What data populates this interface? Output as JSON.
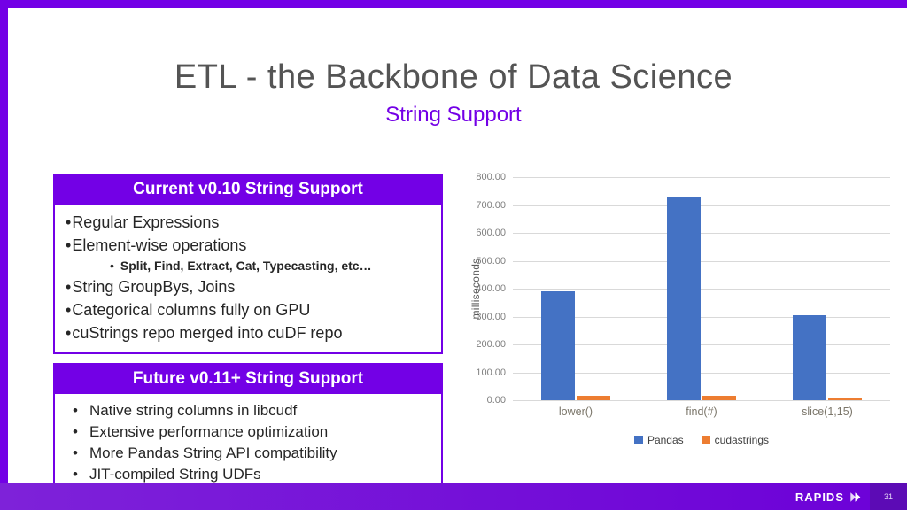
{
  "slide": {
    "title": "ETL - the Backbone of Data Science",
    "subtitle": "String Support",
    "brand": "RAPIDS",
    "page_number": "31"
  },
  "current_box": {
    "header": "Current v0.10 String Support",
    "items": [
      {
        "text": "Regular Expressions",
        "level": 1
      },
      {
        "text": "Element-wise operations",
        "level": 1
      },
      {
        "text": "Split, Find, Extract, Cat, Typecasting, etc…",
        "level": 2
      },
      {
        "text": "String GroupBys, Joins",
        "level": 1
      },
      {
        "text": "Categorical columns fully on GPU",
        "level": 1
      },
      {
        "text": "cuStrings repo merged into cuDF repo",
        "level": 1
      }
    ]
  },
  "future_box": {
    "header": "Future v0.11+ String Support",
    "items": [
      "Native string columns in libcudf",
      "Extensive performance optimization",
      "More Pandas String API compatibility",
      "JIT-compiled String UDFs"
    ]
  },
  "chart_data": {
    "type": "bar",
    "categories": [
      "lower()",
      "find(#)",
      "slice(1,15)"
    ],
    "series": [
      {
        "name": "Pandas",
        "color": "#4472c4",
        "values": [
          390,
          730,
          305
        ]
      },
      {
        "name": "cudastrings",
        "color": "#ed7d31",
        "values": [
          15,
          15,
          5
        ]
      }
    ],
    "title": "",
    "xlabel": "",
    "ylabel": "milliseconds",
    "ylim": [
      0,
      800
    ],
    "ytick_step": 100,
    "grid": true,
    "legend_position": "bottom"
  },
  "colors": {
    "accent_purple": "#7300e6",
    "title_gray": "#545454",
    "gridline": "#d9d9d9"
  }
}
